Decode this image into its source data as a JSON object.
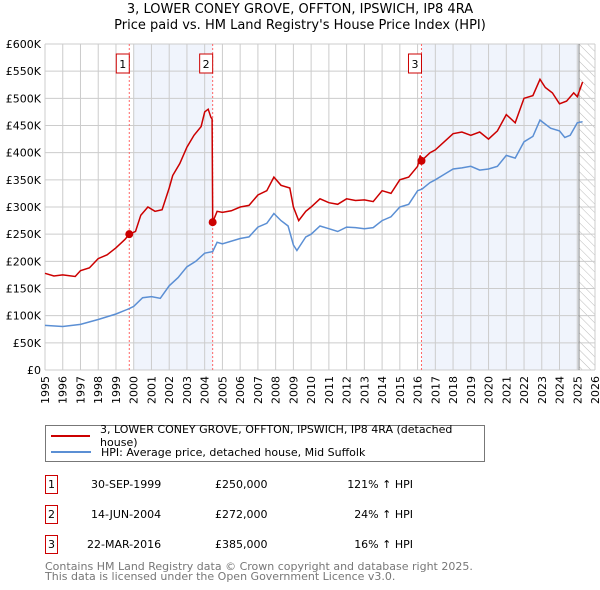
{
  "chart_data": {
    "type": "line",
    "title": "3, LOWER CONEY GROVE, OFFTON, IPSWICH, IP8 4RA",
    "subtitle": "Price paid vs. HM Land Registry's House Price Index (HPI)",
    "xlim": [
      1995,
      2026
    ],
    "ylim": [
      0,
      600000
    ],
    "x_ticks": [
      "1995",
      "1996",
      "1997",
      "1998",
      "1999",
      "2000",
      "2001",
      "2002",
      "2003",
      "2004",
      "2005",
      "2006",
      "2007",
      "2008",
      "2009",
      "2010",
      "2011",
      "2012",
      "2013",
      "2014",
      "2015",
      "2016",
      "2017",
      "2018",
      "2019",
      "2020",
      "2021",
      "2022",
      "2023",
      "2024",
      "2025",
      "2026"
    ],
    "y_ticks": [
      {
        "v": 0,
        "label": "£0"
      },
      {
        "v": 50000,
        "label": "£50K"
      },
      {
        "v": 100000,
        "label": "£100K"
      },
      {
        "v": 150000,
        "label": "£150K"
      },
      {
        "v": 200000,
        "label": "£200K"
      },
      {
        "v": 250000,
        "label": "£250K"
      },
      {
        "v": 300000,
        "label": "£300K"
      },
      {
        "v": 350000,
        "label": "£350K"
      },
      {
        "v": 400000,
        "label": "£400K"
      },
      {
        "v": 450000,
        "label": "£450K"
      },
      {
        "v": 500000,
        "label": "£500K"
      },
      {
        "v": 550000,
        "label": "£550K"
      },
      {
        "v": 600000,
        "label": "£600K"
      }
    ],
    "grid": true,
    "series": [
      {
        "name": "3, LOWER CONEY GROVE, OFFTON, IPSWICH, IP8 4RA (detached house)",
        "color": "#cc0000",
        "x": [
          1995,
          1995.5,
          1996,
          1996.7,
          1997,
          1997.5,
          1998,
          1998.5,
          1999,
          1999.5,
          1999.75,
          2000.1,
          2000.4,
          2000.8,
          2001.2,
          2001.6,
          2002,
          2002.2,
          2002.6,
          2003,
          2003.4,
          2003.8,
          2004.0,
          2004.2,
          2004.35,
          2004.42,
          2004.45,
          2004.7,
          2005,
          2005.5,
          2006,
          2006.5,
          2007,
          2007.5,
          2007.9,
          2008.3,
          2008.8,
          2009.0,
          2009.3,
          2009.7,
          2010,
          2010.5,
          2011,
          2011.5,
          2012,
          2012.5,
          2013,
          2013.5,
          2014,
          2014.5,
          2015,
          2015.5,
          2016.0,
          2016.15,
          2016.22,
          2016.7,
          2017,
          2017.5,
          2018,
          2018.5,
          2019,
          2019.5,
          2020,
          2020.5,
          2021,
          2021.5,
          2022,
          2022.5,
          2022.9,
          2023.2,
          2023.6,
          2024.0,
          2024.4,
          2024.8,
          2025.0,
          2025.3
        ],
        "values": [
          178000,
          173000,
          175000,
          172000,
          183000,
          188000,
          205000,
          212000,
          225000,
          240000,
          250000,
          255000,
          285000,
          300000,
          292000,
          295000,
          335000,
          358000,
          380000,
          410000,
          432000,
          448000,
          475000,
          480000,
          465000,
          462000,
          272000,
          292000,
          290000,
          293000,
          300000,
          303000,
          322000,
          330000,
          355000,
          340000,
          335000,
          300000,
          275000,
          292000,
          300000,
          315000,
          308000,
          305000,
          315000,
          312000,
          313000,
          310000,
          330000,
          325000,
          350000,
          355000,
          375000,
          395000,
          385000,
          400000,
          405000,
          420000,
          435000,
          438000,
          432000,
          438000,
          425000,
          440000,
          470000,
          455000,
          500000,
          505000,
          535000,
          520000,
          510000,
          490000,
          495000,
          510000,
          503000,
          530000
        ]
      },
      {
        "name": "HPI: Average price, detached house, Mid Suffolk",
        "color": "#5b8fd4",
        "x": [
          1995,
          1996,
          1997,
          1998,
          1999,
          1999.75,
          2000,
          2000.5,
          2001,
          2001.5,
          2002,
          2002.5,
          2003,
          2003.5,
          2004,
          2004.45,
          2004.7,
          2005,
          2006,
          2006.5,
          2007,
          2007.5,
          2007.9,
          2008.3,
          2008.7,
          2009.0,
          2009.2,
          2009.7,
          2010,
          2010.5,
          2011,
          2011.5,
          2012,
          2012.5,
          2013,
          2013.5,
          2014,
          2014.5,
          2015,
          2015.5,
          2016,
          2016.25,
          2016.7,
          2017,
          2017.5,
          2018,
          2018.5,
          2019,
          2019.5,
          2020,
          2020.5,
          2021,
          2021.5,
          2022,
          2022.5,
          2022.9,
          2023.5,
          2024,
          2024.3,
          2024.6,
          2025.0,
          2025.3
        ],
        "values": [
          82000,
          80000,
          84000,
          93000,
          103000,
          113000,
          117000,
          133000,
          135000,
          132000,
          155000,
          170000,
          190000,
          200000,
          215000,
          218000,
          235000,
          232000,
          242000,
          245000,
          263000,
          270000,
          288000,
          275000,
          265000,
          230000,
          220000,
          245000,
          250000,
          265000,
          260000,
          255000,
          263000,
          262000,
          260000,
          262000,
          275000,
          282000,
          300000,
          305000,
          330000,
          333000,
          345000,
          350000,
          360000,
          370000,
          372000,
          375000,
          368000,
          370000,
          375000,
          395000,
          390000,
          420000,
          430000,
          460000,
          445000,
          440000,
          428000,
          432000,
          455000,
          457000
        ]
      }
    ],
    "sales": [
      {
        "n": "1",
        "x": 1999.75,
        "date": "30-SEP-1999",
        "price_value": 250000,
        "price": "£250,000",
        "hpi": "121% ↑ HPI"
      },
      {
        "n": "2",
        "x": 2004.45,
        "date": "14-JUN-2004",
        "price_value": 272000,
        "price": "£272,000",
        "hpi": "24% ↑ HPI"
      },
      {
        "n": "3",
        "x": 2016.22,
        "date": "22-MAR-2016",
        "price_value": 385000,
        "price": "£385,000",
        "hpi": "16% ↑ HPI"
      }
    ],
    "shaded_ranges": [
      [
        2000.0,
        2004.45
      ],
      [
        2016.22,
        2025.1
      ]
    ],
    "forecast_hatch_from": 2025.1
  },
  "footer": {
    "line1": "Contains HM Land Registry data © Crown copyright and database right 2025.",
    "line2": "This data is licensed under the Open Government Licence v3.0."
  }
}
